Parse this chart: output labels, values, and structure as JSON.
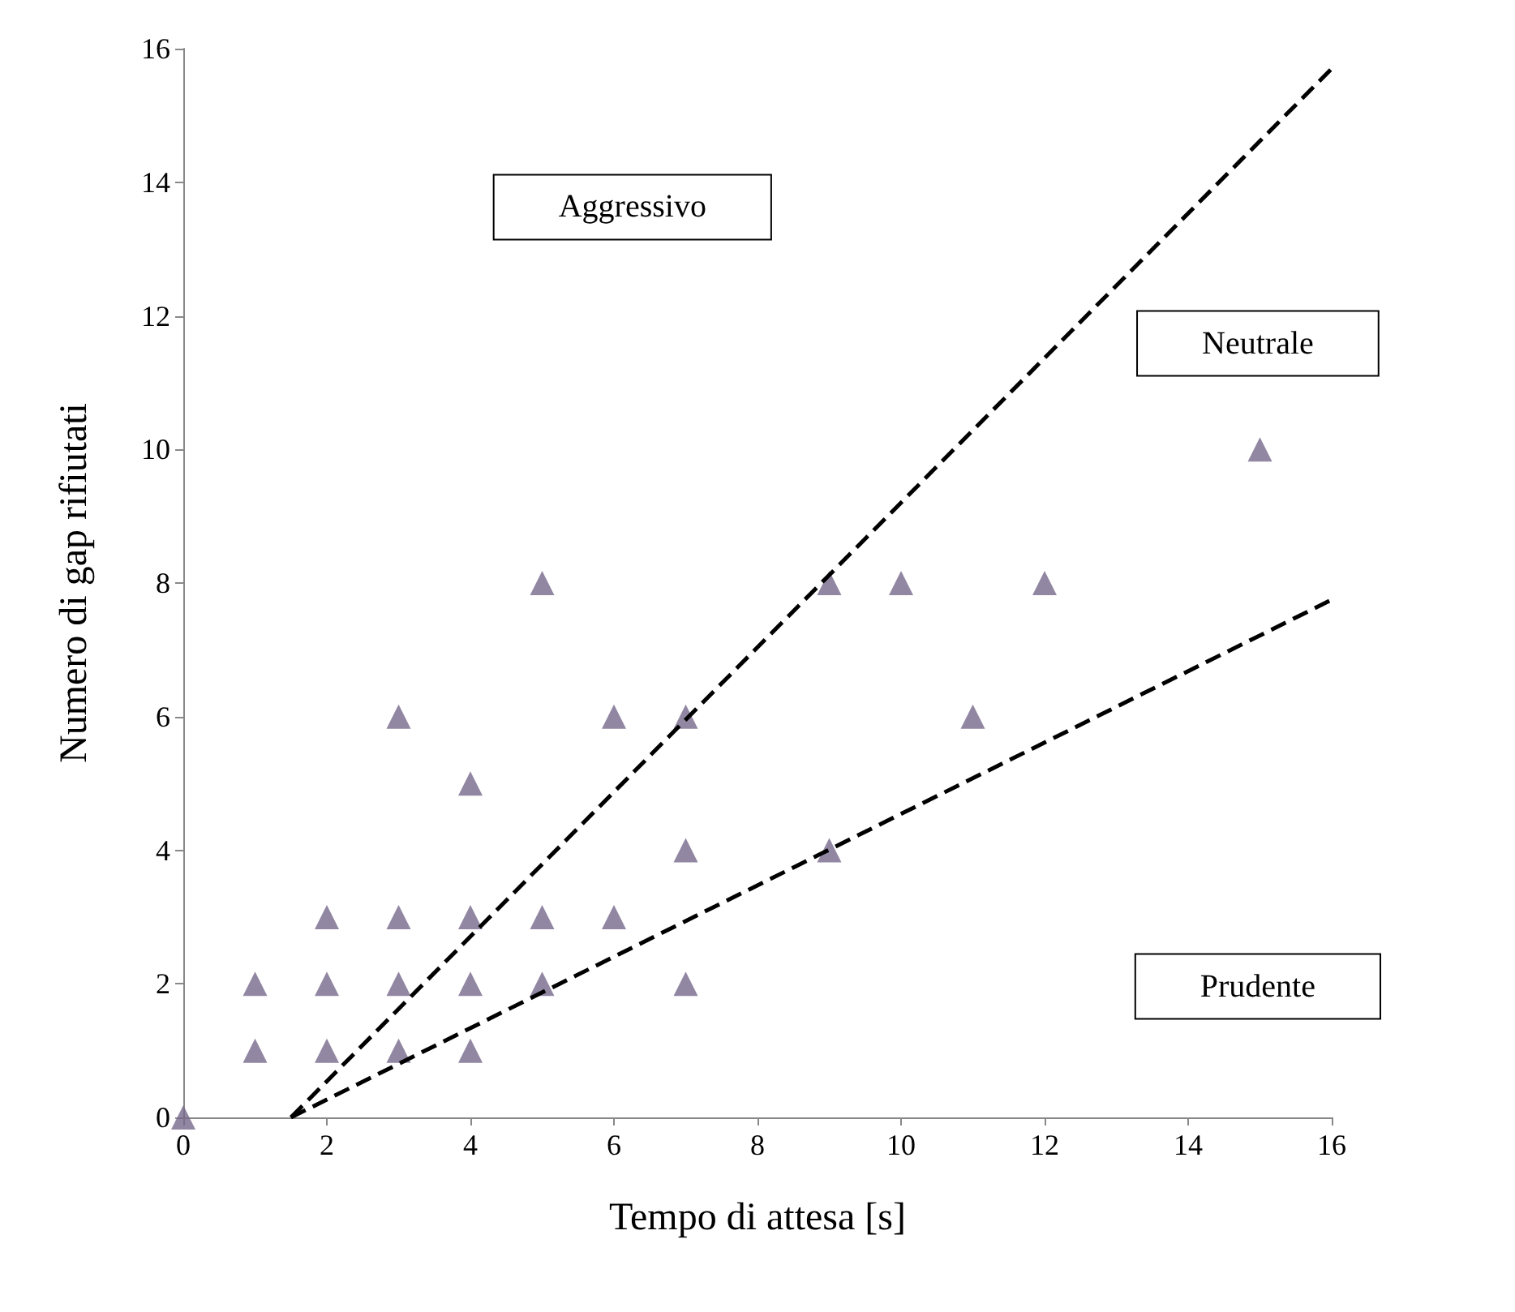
{
  "chart_data": {
    "type": "scatter",
    "xlabel": "Tempo di attesa [s]",
    "ylabel": "Numero di gap rifiutati",
    "xlim": [
      0,
      16
    ],
    "ylim": [
      0,
      16
    ],
    "xticks": [
      0,
      2,
      4,
      6,
      8,
      10,
      12,
      14,
      16
    ],
    "yticks": [
      0,
      2,
      4,
      6,
      8,
      10,
      12,
      14,
      16
    ],
    "grid": false,
    "series": [
      {
        "color": "#77698c",
        "marker": "triangle",
        "x": [
          0,
          1,
          1,
          2,
          2,
          2,
          3,
          3,
          3,
          3,
          4,
          4,
          4,
          4,
          5,
          5,
          5,
          6,
          6,
          7,
          7,
          7,
          9,
          9,
          10,
          11,
          12,
          15
        ],
        "values": [
          0,
          1,
          2,
          1,
          2,
          3,
          1,
          2,
          3,
          6,
          1,
          2,
          3,
          5,
          2,
          3,
          8,
          3,
          6,
          2,
          4,
          6,
          4,
          8,
          8,
          6,
          8,
          10
        ]
      },
      {
        "type": "line",
        "color": "#000000",
        "marker": "none",
        "line_style": "dashed",
        "x": [
          1.5,
          16
        ],
        "values": [
          0,
          15.7
        ]
      },
      {
        "type": "line",
        "color": "#000000",
        "marker": "none",
        "line_style": "dashed",
        "x": [
          1.5,
          16
        ],
        "values": [
          0,
          7.75
        ]
      }
    ],
    "annotations": [
      "Aggressivo",
      "Neutrale",
      "Prudente"
    ]
  }
}
